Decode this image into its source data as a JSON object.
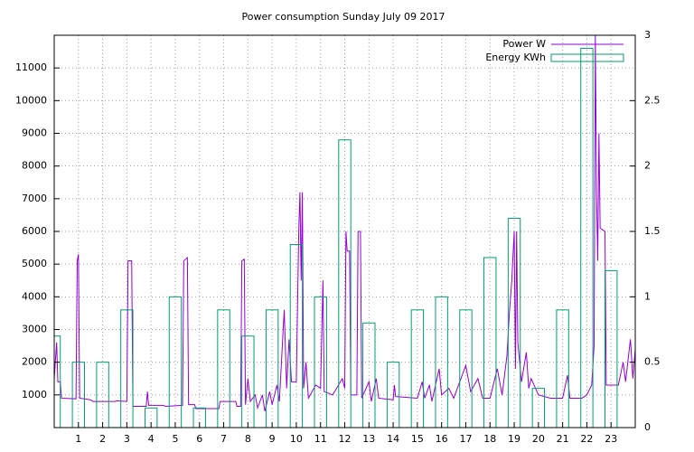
{
  "chart_data": {
    "type": "line",
    "title": "Power consumption Sunday July 09 2017",
    "xlim": [
      0,
      24
    ],
    "xticks": [
      1,
      2,
      3,
      4,
      5,
      6,
      7,
      8,
      9,
      10,
      11,
      12,
      13,
      14,
      15,
      16,
      17,
      18,
      19,
      20,
      21,
      22,
      23
    ],
    "ylim": [
      0,
      12000
    ],
    "yticks": [
      1000,
      2000,
      3000,
      4000,
      5000,
      6000,
      7000,
      8000,
      9000,
      10000,
      11000
    ],
    "y2lim": [
      0,
      3
    ],
    "y2ticks": [
      0,
      0.5,
      1,
      1.5,
      2,
      2.5,
      3
    ],
    "grid": true,
    "legend": "top right",
    "series": [
      {
        "name": "Power W",
        "color": "#9400d3",
        "type": "line",
        "x": [
          0,
          0.1,
          0.15,
          0.25,
          0.3,
          0.9,
          0.95,
          1,
          1.05,
          1.5,
          1.6,
          2.5,
          2.6,
          3,
          3.05,
          3.2,
          3.25,
          3.8,
          3.85,
          3.9,
          4.5,
          4.6,
          5.3,
          5.35,
          5.5,
          5.55,
          5.8,
          5.85,
          6.8,
          6.85,
          7.5,
          7.55,
          7.7,
          7.75,
          7.85,
          7.9,
          8,
          8.1,
          8.3,
          8.4,
          8.6,
          8.7,
          8.9,
          9,
          9.2,
          9.3,
          9.5,
          9.6,
          9.7,
          9.8,
          10,
          10.1,
          10.15,
          10.2,
          10.25,
          10.3,
          10.4,
          10.5,
          10.8,
          11,
          11.1,
          11.15,
          11.5,
          11.9,
          12,
          12.05,
          12.1,
          12.2,
          12.25,
          12.5,
          12.55,
          12.65,
          12.7,
          13,
          13.1,
          13.3,
          13.4,
          14,
          14.05,
          14.1,
          15,
          15.2,
          15.3,
          15.5,
          15.6,
          15.9,
          16,
          16.3,
          16.5,
          16.8,
          17,
          17.2,
          17.5,
          17.7,
          18,
          18.3,
          18.5,
          18.7,
          18.8,
          18.9,
          19,
          19.05,
          19.1,
          19.15,
          19.3,
          19.5,
          19.6,
          19.7,
          20,
          20.5,
          21,
          21.2,
          21.3,
          21.8,
          22,
          22.2,
          22.3,
          22.35,
          22.4,
          22.45,
          22.5,
          22.55,
          22.75,
          22.8,
          23.3,
          23.5,
          23.6,
          23.8,
          23.9,
          24
        ],
        "values": [
          1500,
          2600,
          1400,
          1400,
          900,
          880,
          5100,
          5300,
          900,
          850,
          800,
          800,
          820,
          800,
          5100,
          5100,
          650,
          650,
          1100,
          680,
          680,
          650,
          680,
          5100,
          5200,
          700,
          700,
          580,
          580,
          800,
          800,
          650,
          650,
          5100,
          5150,
          700,
          1500,
          800,
          1000,
          600,
          1000,
          500,
          1100,
          700,
          1300,
          800,
          3600,
          1200,
          2700,
          1400,
          1400,
          6000,
          7200,
          4500,
          7200,
          1200,
          2000,
          900,
          1300,
          1200,
          4500,
          1100,
          1000,
          1500,
          1200,
          6000,
          5400,
          5400,
          1000,
          1000,
          6000,
          6000,
          900,
          1400,
          800,
          1500,
          900,
          850,
          1300,
          950,
          900,
          1400,
          900,
          1300,
          800,
          1800,
          1000,
          1200,
          900,
          1500,
          1900,
          1100,
          1500,
          900,
          900,
          1800,
          1000,
          2200,
          3500,
          4500,
          6000,
          1800,
          6000,
          2600,
          1400,
          2300,
          1200,
          1500,
          1000,
          900,
          900,
          1600,
          900,
          900,
          1000,
          1300,
          2500,
          12000,
          7200,
          5100,
          9000,
          6100,
          6000,
          1300,
          1300,
          2000,
          1400,
          2700,
          1500,
          2400
        ]
      },
      {
        "name": "Energy KWh",
        "color": "#009e73",
        "type": "boxes",
        "axis": "y2",
        "x": [
          0,
          1,
          2,
          3,
          4,
          5,
          6,
          7,
          8,
          9,
          10,
          11,
          12,
          13,
          14,
          15,
          16,
          17,
          18,
          19,
          20,
          21,
          22,
          23
        ],
        "values": [
          0.7,
          0.5,
          0.5,
          0.9,
          0.15,
          1.0,
          0.15,
          0.9,
          0.7,
          0.9,
          1.4,
          1.0,
          2.2,
          0.8,
          0.5,
          0.9,
          1.0,
          0.9,
          1.3,
          1.6,
          0.3,
          0.9,
          2.9,
          1.2
        ]
      }
    ]
  }
}
